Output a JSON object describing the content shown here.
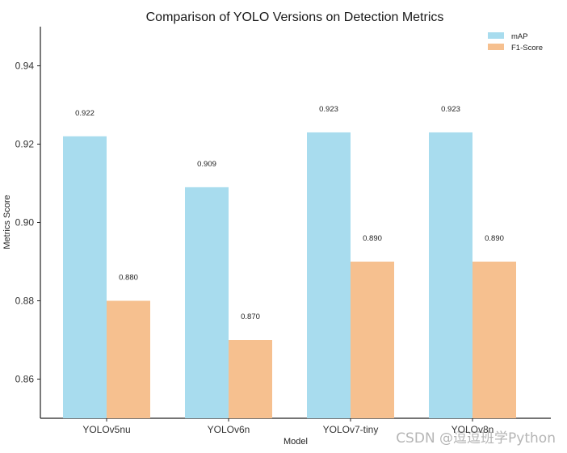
{
  "chart_data": {
    "type": "bar",
    "title": "Comparison of YOLO Versions on Detection Metrics",
    "xlabel": "Model",
    "ylabel": "Metrics Score",
    "categories": [
      "YOLOv5nu",
      "YOLOv6n",
      "YOLOv7-tiny",
      "YOLOv8n"
    ],
    "series": [
      {
        "name": "mAP",
        "values": [
          0.922,
          0.909,
          0.923,
          0.923
        ],
        "labels": [
          "0.922",
          "0.909",
          "0.923",
          "0.923"
        ],
        "color": "#a8dcee"
      },
      {
        "name": "F1-Score",
        "values": [
          0.88,
          0.87,
          0.89,
          0.89
        ],
        "labels": [
          "0.880",
          "0.870",
          "0.890",
          "0.890"
        ],
        "color": "#f6c08f"
      }
    ],
    "ylim": [
      0.85,
      0.95
    ],
    "yticks": [
      0.86,
      0.88,
      0.9,
      0.92,
      0.94
    ],
    "ytick_labels": [
      "0.86",
      "0.88",
      "0.90",
      "0.92",
      "0.94"
    ],
    "grid": false,
    "legend_position": "top-right"
  },
  "watermark": "CSDN @逗逗班学Python"
}
